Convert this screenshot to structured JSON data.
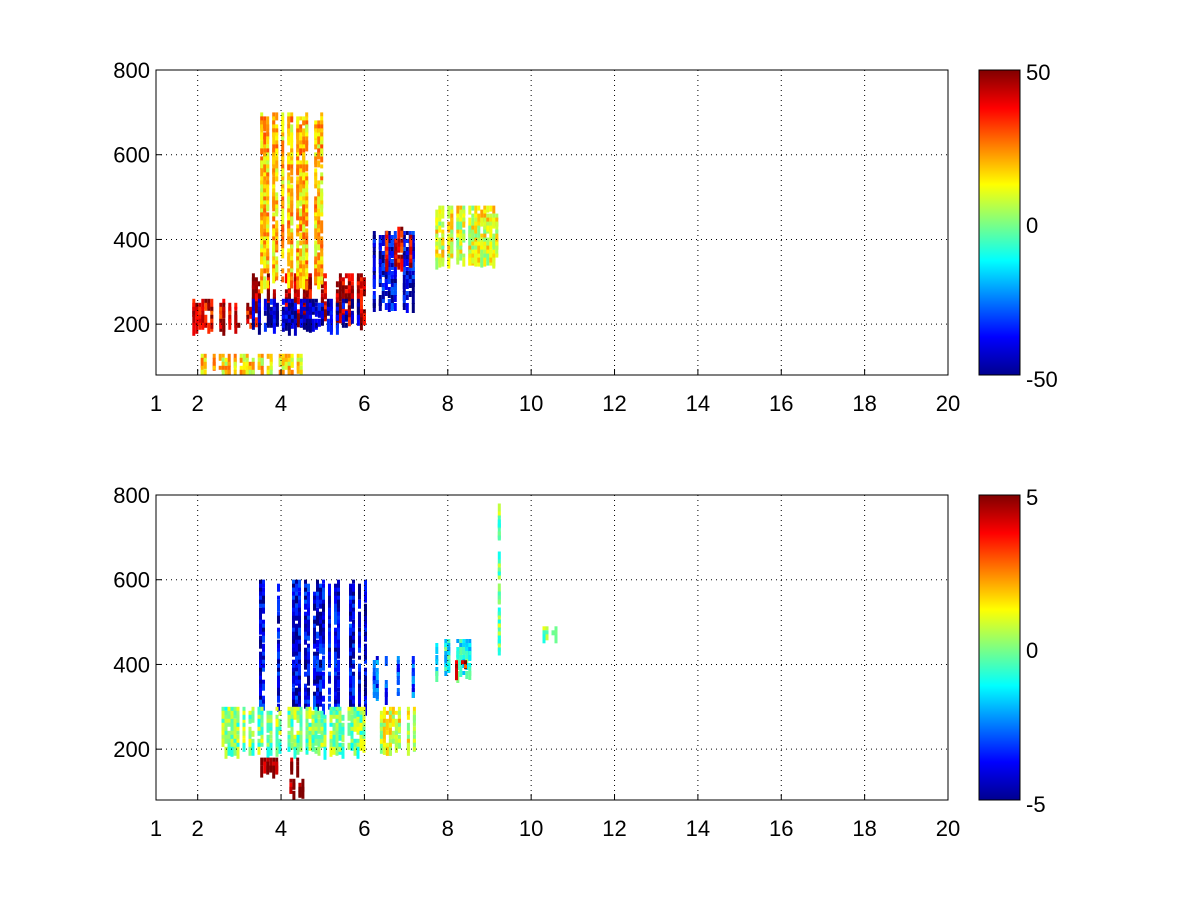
{
  "chart_data": [
    {
      "type": "heatmap",
      "title": "",
      "xlabel": "",
      "ylabel": "",
      "xlim": [
        1,
        20
      ],
      "ylim": [
        80,
        800
      ],
      "xticks": [
        1,
        2,
        4,
        6,
        8,
        10,
        12,
        14,
        16,
        18,
        20
      ],
      "xtick_labels": [
        "1",
        "2",
        "4",
        "6",
        "8",
        "10",
        "12",
        "14",
        "16",
        "18",
        "20"
      ],
      "yticks": [
        200,
        400,
        600,
        800
      ],
      "ytick_labels": [
        "200",
        "400",
        "600",
        "800"
      ],
      "grid": true,
      "colormap": "jet",
      "colorbar": {
        "min": -50,
        "max": 50,
        "ticks": [
          -50,
          0,
          50
        ],
        "tick_labels": [
          "-50",
          "0",
          "50"
        ]
      },
      "features": [
        {
          "x_range": [
            1.8,
            3.3
          ],
          "y_range": [
            200,
            260
          ],
          "value": 40
        },
        {
          "x_range": [
            3.3,
            6.0
          ],
          "y_range": [
            210,
            320
          ],
          "value": 45
        },
        {
          "x_range": [
            3.3,
            6.0
          ],
          "y_range": [
            200,
            260
          ],
          "value": -45
        },
        {
          "x_range": [
            3.5,
            5.0
          ],
          "y_range": [
            300,
            700
          ],
          "value": 18
        },
        {
          "x_range": [
            6.2,
            7.2
          ],
          "y_range": [
            250,
            420
          ],
          "value": -40
        },
        {
          "x_range": [
            6.5,
            7.1
          ],
          "y_range": [
            340,
            430
          ],
          "value": 40
        },
        {
          "x_range": [
            7.7,
            9.2
          ],
          "y_range": [
            350,
            480
          ],
          "value": 10
        },
        {
          "x_range": [
            2.0,
            4.5
          ],
          "y_range": [
            90,
            130
          ],
          "value": 15
        }
      ]
    },
    {
      "type": "heatmap",
      "title": "",
      "xlabel": "",
      "ylabel": "",
      "xlim": [
        1,
        20
      ],
      "ylim": [
        80,
        800
      ],
      "xticks": [
        1,
        2,
        4,
        6,
        8,
        10,
        12,
        14,
        16,
        18,
        20
      ],
      "xtick_labels": [
        "1",
        "2",
        "4",
        "6",
        "8",
        "10",
        "12",
        "14",
        "16",
        "18",
        "20"
      ],
      "yticks": [
        200,
        400,
        600,
        800
      ],
      "ytick_labels": [
        "200",
        "400",
        "600",
        "800"
      ],
      "grid": true,
      "colormap": "jet",
      "colorbar": {
        "min": -5,
        "max": 5,
        "ticks": [
          -5,
          0,
          5
        ],
        "tick_labels": [
          "-5",
          "0",
          "5"
        ]
      },
      "features": [
        {
          "x_range": [
            3.4,
            6.0
          ],
          "y_range": [
            300,
            600
          ],
          "value": -4
        },
        {
          "x_range": [
            2.5,
            6.0
          ],
          "y_range": [
            200,
            300
          ],
          "value": 0
        },
        {
          "x_range": [
            3.5,
            4.5
          ],
          "y_range": [
            160,
            180
          ],
          "value": 5
        },
        {
          "x_range": [
            4.2,
            4.5
          ],
          "y_range": [
            100,
            130
          ],
          "value": 5
        },
        {
          "x_range": [
            6.2,
            7.2
          ],
          "y_range": [
            330,
            420
          ],
          "value": -3
        },
        {
          "x_range": [
            6.3,
            7.2
          ],
          "y_range": [
            200,
            300
          ],
          "value": 1
        },
        {
          "x_range": [
            7.7,
            8.5
          ],
          "y_range": [
            380,
            460
          ],
          "value": -1
        },
        {
          "x_range": [
            8.1,
            8.4
          ],
          "y_range": [
            390,
            410
          ],
          "value": 4
        },
        {
          "x_range": [
            9.2,
            9.4
          ],
          "y_range": [
            420,
            780
          ],
          "value": 0
        },
        {
          "x_range": [
            10.2,
            10.8
          ],
          "y_range": [
            470,
            490
          ],
          "value": 0
        }
      ]
    }
  ]
}
